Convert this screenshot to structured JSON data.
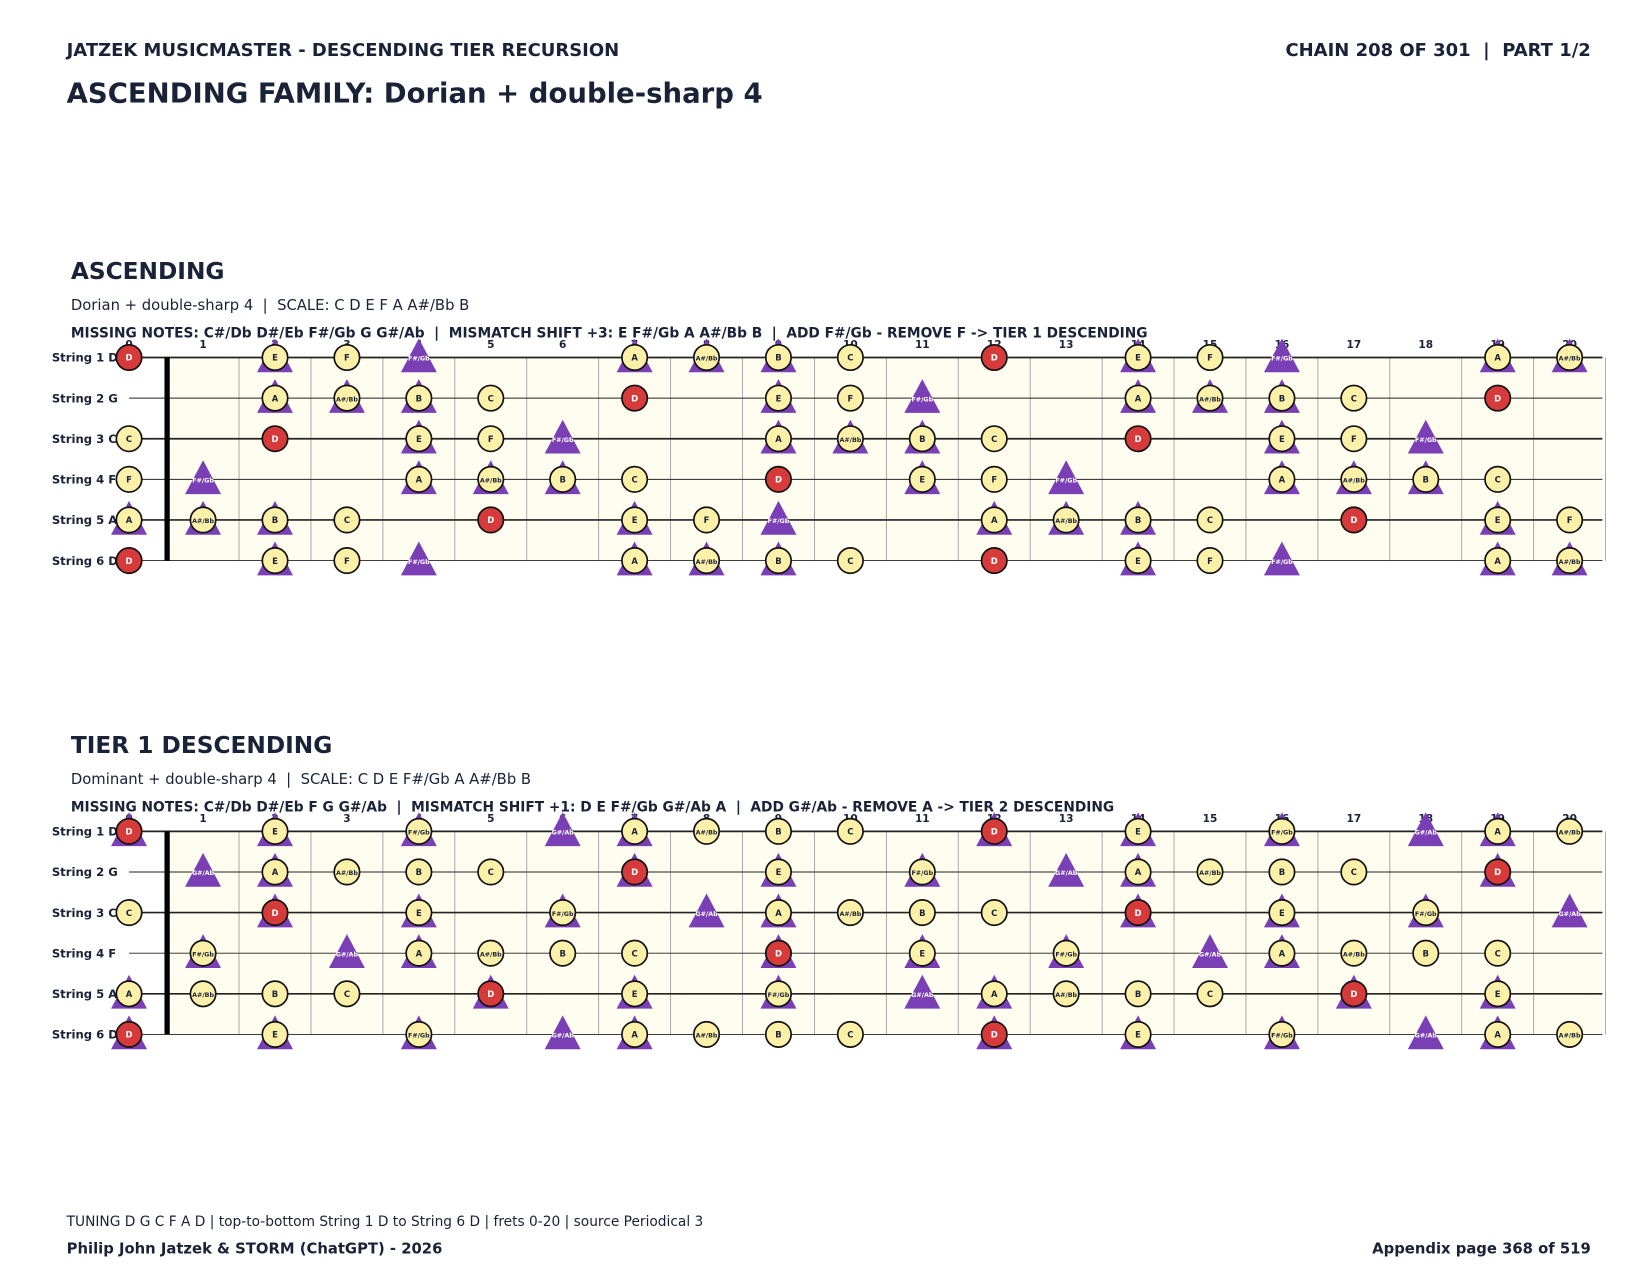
{
  "header": {
    "left": "JATZEK MUSICMASTER - DESCENDING TIER RECURSION",
    "right": "CHAIN 208 OF 301  |  PART 1/2",
    "title": "ASCENDING FAMILY: Dorian + double-sharp 4"
  },
  "fret_numbers": [
    0,
    1,
    2,
    3,
    4,
    5,
    6,
    7,
    8,
    9,
    10,
    11,
    12,
    13,
    14,
    15,
    16,
    17,
    18,
    19,
    20
  ],
  "string_labels": [
    "String 1 D",
    "String 2 G",
    "String 3 C",
    "String 4 F",
    "String 5 A",
    "String 6 D"
  ],
  "sections": [
    {
      "heading": "ASCENDING",
      "subtitle": "Dorian + double-sharp 4  |  SCALE: C D E F A A#/Bb B",
      "info": "MISSING NOTES: C#/Db D#/Eb F#/Gb G G#/Ab  |  MISMATCH SHIFT +3: E F#/Gb A A#/Bb B  |  ADD F#/Gb - REMOVE F -> TIER 1 DESCENDING",
      "strings": [
        {
          "notes": [
            "D",
            null,
            "E",
            "F",
            "F#/Gb",
            null,
            null,
            "A",
            "A#/Bb",
            "B",
            "C",
            null,
            "D",
            null,
            "E",
            "F",
            "F#/Gb",
            null,
            null,
            "A",
            "A#/Bb"
          ],
          "marks": [
            "r",
            null,
            "ct",
            "c",
            "t",
            null,
            null,
            "ct",
            "ct",
            "ct",
            "c",
            null,
            "r",
            null,
            "ct",
            "c",
            "t",
            null,
            null,
            "ct",
            "ct"
          ]
        },
        {
          "notes": [
            null,
            null,
            "A",
            "A#/Bb",
            "B",
            "C",
            null,
            "D",
            null,
            "E",
            "F",
            "F#/Gb",
            null,
            null,
            "A",
            "A#/Bb",
            "B",
            "C",
            null,
            "D",
            null
          ],
          "marks": [
            null,
            null,
            "ct",
            "ct",
            "ct",
            "c",
            null,
            "r",
            null,
            "ct",
            "c",
            "t",
            null,
            null,
            "ct",
            "ct",
            "ct",
            "c",
            null,
            "r",
            null
          ]
        },
        {
          "notes": [
            "C",
            null,
            "D",
            null,
            "E",
            "F",
            "F#/Gb",
            null,
            null,
            "A",
            "A#/Bb",
            "B",
            "C",
            null,
            "D",
            null,
            "E",
            "F",
            "F#/Gb",
            null,
            null
          ],
          "marks": [
            "c",
            null,
            "r",
            null,
            "ct",
            "c",
            "t",
            null,
            null,
            "ct",
            "ct",
            "ct",
            "c",
            null,
            "r",
            null,
            "ct",
            "c",
            "t",
            null,
            null
          ]
        },
        {
          "notes": [
            "F",
            "F#/Gb",
            null,
            null,
            "A",
            "A#/Bb",
            "B",
            "C",
            null,
            "D",
            null,
            "E",
            "F",
            "F#/Gb",
            null,
            null,
            "A",
            "A#/Bb",
            "B",
            "C",
            null
          ],
          "marks": [
            "c",
            "t",
            null,
            null,
            "ct",
            "ct",
            "ct",
            "c",
            null,
            "r",
            null,
            "ct",
            "c",
            "t",
            null,
            null,
            "ct",
            "ct",
            "ct",
            "c",
            null
          ]
        },
        {
          "notes": [
            "A",
            "A#/Bb",
            "B",
            "C",
            null,
            "D",
            null,
            "E",
            "F",
            "F#/Gb",
            null,
            null,
            "A",
            "A#/Bb",
            "B",
            "C",
            null,
            "D",
            null,
            "E",
            "F"
          ],
          "marks": [
            "ct",
            "ct",
            "ct",
            "c",
            null,
            "r",
            null,
            "ct",
            "c",
            "t",
            null,
            null,
            "ct",
            "ct",
            "ct",
            "c",
            null,
            "r",
            null,
            "ct",
            "c"
          ]
        },
        {
          "notes": [
            "D",
            null,
            "E",
            "F",
            "F#/Gb",
            null,
            null,
            "A",
            "A#/Bb",
            "B",
            "C",
            null,
            "D",
            null,
            "E",
            "F",
            "F#/Gb",
            null,
            null,
            "A",
            "A#/Bb"
          ],
          "marks": [
            "r",
            null,
            "ct",
            "c",
            "t",
            null,
            null,
            "ct",
            "ct",
            "ct",
            "c",
            null,
            "r",
            null,
            "ct",
            "c",
            "t",
            null,
            null,
            "ct",
            "ct"
          ]
        }
      ]
    },
    {
      "heading": "TIER 1 DESCENDING",
      "subtitle": "Dominant + double-sharp 4  |  SCALE: C D E F#/Gb A A#/Bb B",
      "info": "MISSING NOTES: C#/Db D#/Eb F G G#/Ab  |  MISMATCH SHIFT +1: D E F#/Gb G#/Ab A  |  ADD G#/Ab - REMOVE A -> TIER 2 DESCENDING",
      "strings": [
        {
          "notes": [
            "D",
            null,
            "E",
            null,
            "F#/Gb",
            null,
            "G#/Ab",
            "A",
            "A#/Bb",
            "B",
            "C",
            null,
            "D",
            null,
            "E",
            null,
            "F#/Gb",
            null,
            "G#/Ab",
            "A",
            "A#/Bb"
          ],
          "marks": [
            "rt",
            null,
            "ct",
            null,
            "ct",
            null,
            "t",
            "ct",
            "c",
            "c",
            "c",
            null,
            "rt",
            null,
            "ct",
            null,
            "ct",
            null,
            "t",
            "ct",
            "c"
          ]
        },
        {
          "notes": [
            null,
            "G#/Ab",
            "A",
            "A#/Bb",
            "B",
            "C",
            null,
            "D",
            null,
            "E",
            null,
            "F#/Gb",
            null,
            "G#/Ab",
            "A",
            "A#/Bb",
            "B",
            "C",
            null,
            "D",
            null
          ],
          "marks": [
            null,
            "t",
            "ct",
            "c",
            "c",
            "c",
            null,
            "rt",
            null,
            "ct",
            null,
            "ct",
            null,
            "t",
            "ct",
            "c",
            "c",
            "c",
            null,
            "rt",
            null
          ]
        },
        {
          "notes": [
            "C",
            null,
            "D",
            null,
            "E",
            null,
            "F#/Gb",
            null,
            "G#/Ab",
            "A",
            "A#/Bb",
            "B",
            "C",
            null,
            "D",
            null,
            "E",
            null,
            "F#/Gb",
            null,
            "G#/Ab"
          ],
          "marks": [
            "c",
            null,
            "rt",
            null,
            "ct",
            null,
            "ct",
            null,
            "t",
            "ct",
            "c",
            "c",
            "c",
            null,
            "rt",
            null,
            "ct",
            null,
            "ct",
            null,
            "t"
          ]
        },
        {
          "notes": [
            null,
            "F#/Gb",
            null,
            "G#/Ab",
            "A",
            "A#/Bb",
            "B",
            "C",
            null,
            "D",
            null,
            "E",
            null,
            "F#/Gb",
            null,
            "G#/Ab",
            "A",
            "A#/Bb",
            "B",
            "C",
            null
          ],
          "marks": [
            null,
            "ct",
            null,
            "t",
            "ct",
            "c",
            "c",
            "c",
            null,
            "rt",
            null,
            "ct",
            null,
            "ct",
            null,
            "t",
            "ct",
            "c",
            "c",
            "c",
            null
          ]
        },
        {
          "notes": [
            "A",
            "A#/Bb",
            "B",
            "C",
            null,
            "D",
            null,
            "E",
            null,
            "F#/Gb",
            null,
            "G#/Ab",
            "A",
            "A#/Bb",
            "B",
            "C",
            null,
            "D",
            null,
            "E",
            null
          ],
          "marks": [
            "ct",
            "c",
            "c",
            "c",
            null,
            "rt",
            null,
            "ct",
            null,
            "ct",
            null,
            "t",
            "ct",
            "c",
            "c",
            "c",
            null,
            "rt",
            null,
            "ct",
            null
          ]
        },
        {
          "notes": [
            "D",
            null,
            "E",
            null,
            "F#/Gb",
            null,
            "G#/Ab",
            "A",
            "A#/Bb",
            "B",
            "C",
            null,
            "D",
            null,
            "E",
            null,
            "F#/Gb",
            null,
            "G#/Ab",
            "A",
            "A#/Bb"
          ],
          "marks": [
            "rt",
            null,
            "ct",
            null,
            "ct",
            null,
            "t",
            "ct",
            "c",
            "c",
            "c",
            null,
            "rt",
            null,
            "ct",
            null,
            "ct",
            null,
            "t",
            "ct",
            "c"
          ]
        }
      ]
    }
  ],
  "footer": {
    "note": "TUNING D G C F A D | top-to-bottom String 1 D to String 6 D | frets 0-20 | source Periodical 3",
    "credit": "Philip John Jatzek & STORM (ChatGPT) - 2026",
    "page": "Appendix page 368 of 519"
  }
}
